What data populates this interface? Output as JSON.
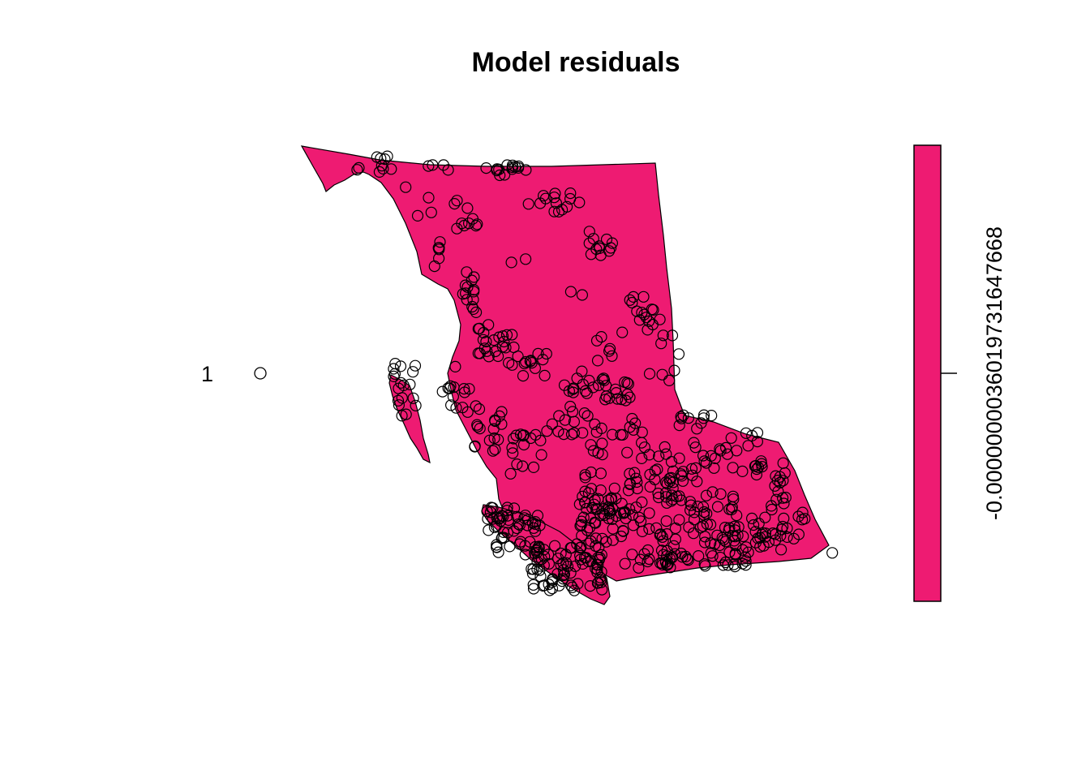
{
  "plot": {
    "title": "Model residuals",
    "legend_entry": "1",
    "fill_color": "#EE1B72",
    "point_color": "#000000"
  },
  "colorbar": {
    "tick_label": "-0.0000000036019731647668"
  }
}
